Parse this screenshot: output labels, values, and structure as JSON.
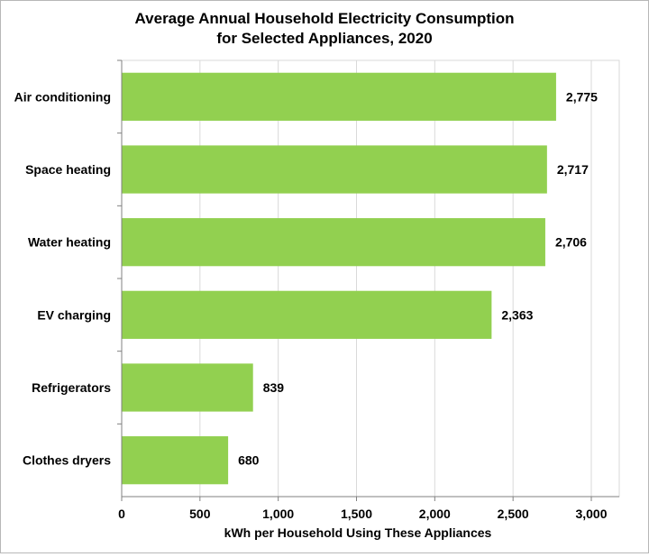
{
  "chart_data": {
    "type": "bar",
    "orientation": "horizontal",
    "title_lines": [
      "Average Annual Household Electricity Consumption",
      "for Selected Appliances, 2020"
    ],
    "categories": [
      "Air conditioning",
      "Space heating",
      "Water heating",
      "EV charging",
      "Refrigerators",
      "Clothes dryers"
    ],
    "values": [
      2775,
      2717,
      2706,
      2363,
      839,
      680
    ],
    "value_labels": [
      "2,775",
      "2,717",
      "2,706",
      "2,363",
      "839",
      "680"
    ],
    "xlabel": "kWh per Household Using These Appliances",
    "ylabel": "",
    "xlim": [
      0,
      3000
    ],
    "x_ticks": [
      0,
      500,
      1000,
      1500,
      2000,
      2500,
      3000
    ],
    "x_tick_labels": [
      "0",
      "500",
      "1,000",
      "1,500",
      "2,000",
      "2,500",
      "3,000"
    ],
    "grid": "vertical",
    "legend": "none",
    "bar_color": "#92d050",
    "grid_color": "#d9d9d9",
    "axis_color": "#808080"
  }
}
